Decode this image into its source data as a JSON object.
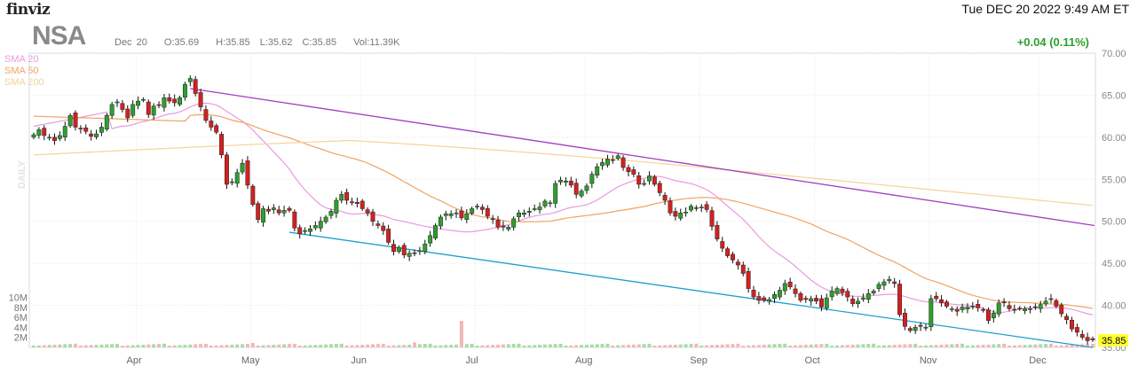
{
  "header": {
    "logo": "finviz",
    "datetime": "Tue DEC 20 2022 9:49 AM ET",
    "ticker": "NSA",
    "date": "Dec 20",
    "open": "O:35.69",
    "high": "H:35.85",
    "low": "L:35.62",
    "close": "C:35.85",
    "volume": "Vol:11.39K",
    "change": "+0.04 (0.11%)"
  },
  "legend": [
    {
      "label": "SMA 20",
      "color": "#e89ae0"
    },
    {
      "label": "SMA 50",
      "color": "#f0a460"
    },
    {
      "label": "SMA 200",
      "color": "#f5d29a"
    }
  ],
  "side_label": "DAILY",
  "chart_data": {
    "type": "candlestick",
    "x_ticks": [
      "Apr",
      "May",
      "Jun",
      "Jul",
      "Aug",
      "Sep",
      "Oct",
      "Nov",
      "Dec"
    ],
    "y_ticks": [
      "70.00",
      "65.00",
      "60.00",
      "55.00",
      "50.00",
      "45.00",
      "40.00",
      "35.00"
    ],
    "ylim": [
      35,
      70
    ],
    "volume_ticks": [
      "10M",
      "8M",
      "6M",
      "4M",
      "2M"
    ],
    "volume_max": 11,
    "last_price": "35.85",
    "colors": {
      "up": "#2ca02c",
      "down": "#d42020",
      "sma20": "#e89ae0",
      "sma50": "#f0a460",
      "sma200": "#f5d29a",
      "upper_trend": "#a23cc0",
      "lower_trend": "#1f9fd0",
      "price_tag": "#ffff33"
    },
    "closes": [
      60.3,
      60.9,
      60.2,
      60.0,
      59.6,
      60.2,
      61.3,
      62.6,
      61.2,
      61.0,
      60.7,
      60.1,
      60.4,
      61.2,
      62.6,
      63.9,
      64.2,
      63.3,
      62.3,
      63.9,
      64.3,
      64.5,
      62.7,
      63.7,
      63.8,
      64.7,
      64.3,
      64.1,
      64.7,
      66.3,
      67.0,
      65.2,
      63.6,
      62.0,
      61.2,
      60.6,
      57.9,
      54.4,
      54.7,
      55.8,
      56.9,
      54.3,
      52.0,
      50.2,
      51.5,
      51.2,
      51.6,
      51.0,
      51.3,
      51.3,
      49.2,
      48.5,
      48.9,
      49.1,
      49.5,
      50.0,
      50.5,
      51.2,
      52.5,
      53.2,
      52.5,
      52.2,
      52.1,
      51.5,
      51.0,
      50.0,
      49.5,
      48.9,
      47.5,
      46.4,
      46.9,
      46.0,
      46.2,
      46.2,
      46.5,
      47.3,
      48.3,
      49.5,
      50.5,
      50.9,
      50.9,
      51.0,
      50.4,
      50.9,
      51.5,
      51.8,
      51.4,
      50.6,
      50.2,
      49.3,
      49.3,
      49.3,
      50.3,
      51.0,
      51.0,
      51.2,
      51.5,
      51.7,
      52.4,
      52.2,
      54.5,
      54.9,
      54.8,
      54.3,
      53.2,
      53.6,
      54.2,
      55.6,
      56.5,
      57.0,
      57.4,
      57.3,
      57.8,
      56.4,
      55.9,
      55.6,
      54.4,
      54.5,
      55.4,
      54.4,
      53.4,
      52.5,
      51.0,
      50.6,
      51.0,
      51.1,
      51.8,
      51.6,
      51.7,
      51.4,
      49.4,
      47.9,
      46.8,
      45.9,
      45.4,
      44.8,
      43.8,
      42.0,
      41.0,
      40.6,
      40.6,
      40.7,
      41.3,
      41.8,
      42.6,
      42.2,
      41.4,
      40.6,
      40.7,
      40.8,
      40.5,
      39.8,
      40.9,
      41.7,
      42.0,
      41.5,
      41.0,
      40.2,
      40.5,
      40.9,
      41.4,
      41.7,
      42.5,
      42.8,
      43.1,
      42.6,
      38.9,
      37.5,
      37.0,
      37.4,
      37.5,
      37.4,
      40.8,
      40.8,
      40.3,
      39.9,
      39.6,
      39.3,
      39.8,
      39.8,
      39.9,
      39.7,
      39.4,
      38.2,
      39.1,
      40.3,
      40.3,
      39.6,
      39.5,
      39.6,
      39.6,
      39.6,
      39.8,
      40.1,
      40.5,
      40.7,
      39.9,
      39.0,
      38.3,
      37.2,
      36.8,
      36.2,
      35.8,
      35.9
    ]
  }
}
